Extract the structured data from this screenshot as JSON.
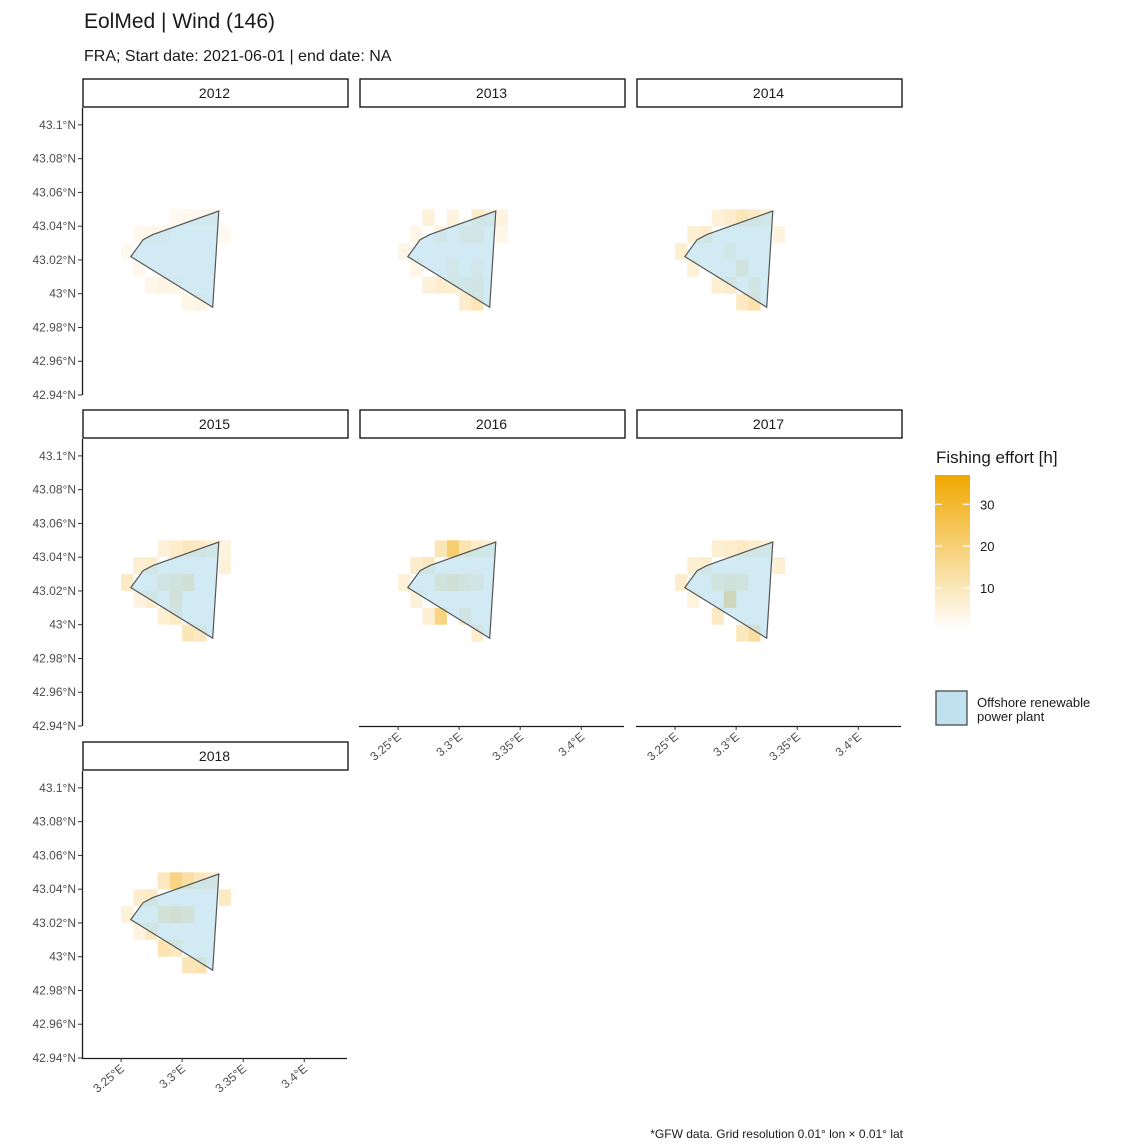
{
  "chart_data": {
    "type": "heatmap",
    "title": "EolMed | Wind (146)",
    "subtitle": "FRA; Start date: 2021-06-01 | end date: NA",
    "caption": "*GFW data. Grid resolution 0.01° lon × 0.01° lat",
    "x_ticks": [
      3.25,
      3.3,
      3.35,
      3.4
    ],
    "x_tick_labels": [
      "3.25°E",
      "3.3°E",
      "3.35°E",
      "3.4°E"
    ],
    "y_ticks": [
      43.1,
      43.08,
      43.06,
      43.04,
      43.02,
      43.0,
      42.98,
      42.96,
      42.94
    ],
    "y_tick_labels": [
      "43.1°N",
      "43.08°N",
      "43.06°N",
      "43.04°N",
      "43.02°N",
      "43°N",
      "42.98°N",
      "42.96°N",
      "42.94°N"
    ],
    "xlim": [
      3.218,
      3.435
    ],
    "ylim": [
      42.94,
      43.11
    ],
    "legend": {
      "fill_title": "Fishing effort [h]",
      "fill_ticks": [
        10,
        20,
        30
      ],
      "fill_range": [
        0,
        37
      ],
      "colors": {
        "low": "#fffaf3",
        "high": "#f0a800"
      },
      "polygon_label": [
        "Offshore renewable",
        "power plant"
      ],
      "polygon_fill": "#bfe2ee",
      "polygon_stroke": "#555555",
      "placement": "right"
    },
    "polygon": [
      [
        3.276,
        43.035
      ],
      [
        3.33,
        43.049
      ],
      [
        3.325,
        42.992
      ],
      [
        3.258,
        43.022
      ],
      [
        3.268,
        43.032
      ]
    ],
    "panels": [
      {
        "label": "2012",
        "cells": [
          {
            "lon": 3.255,
            "lat": 43.025,
            "value": 0.6
          },
          {
            "lon": 3.265,
            "lat": 43.035,
            "value": 1
          },
          {
            "lon": 3.275,
            "lat": 43.035,
            "value": 1.5
          },
          {
            "lon": 3.285,
            "lat": 43.035,
            "value": 1
          },
          {
            "lon": 3.295,
            "lat": 43.045,
            "value": 0.6
          },
          {
            "lon": 3.305,
            "lat": 43.045,
            "value": 1
          },
          {
            "lon": 3.315,
            "lat": 43.045,
            "value": 1.2
          },
          {
            "lon": 3.325,
            "lat": 43.045,
            "value": 1
          },
          {
            "lon": 3.335,
            "lat": 43.035,
            "value": 0.6
          },
          {
            "lon": 3.275,
            "lat": 43.005,
            "value": 1.5
          },
          {
            "lon": 3.285,
            "lat": 43.005,
            "value": 2.5
          },
          {
            "lon": 3.295,
            "lat": 43.005,
            "value": 2
          },
          {
            "lon": 3.305,
            "lat": 42.995,
            "value": 2
          },
          {
            "lon": 3.315,
            "lat": 42.995,
            "value": 2.5
          },
          {
            "lon": 3.265,
            "lat": 43.015,
            "value": 1
          }
        ]
      },
      {
        "label": "2013",
        "cells": [
          {
            "lon": 3.255,
            "lat": 43.025,
            "value": 1.5
          },
          {
            "lon": 3.265,
            "lat": 43.035,
            "value": 2
          },
          {
            "lon": 3.275,
            "lat": 43.045,
            "value": 4
          },
          {
            "lon": 3.285,
            "lat": 43.035,
            "value": 4
          },
          {
            "lon": 3.295,
            "lat": 43.045,
            "value": 3
          },
          {
            "lon": 3.305,
            "lat": 43.035,
            "value": 5
          },
          {
            "lon": 3.315,
            "lat": 43.045,
            "value": 6
          },
          {
            "lon": 3.315,
            "lat": 43.035,
            "value": 5
          },
          {
            "lon": 3.325,
            "lat": 43.045,
            "value": 4
          },
          {
            "lon": 3.335,
            "lat": 43.045,
            "value": 3
          },
          {
            "lon": 3.335,
            "lat": 43.035,
            "value": 2
          },
          {
            "lon": 3.295,
            "lat": 43.015,
            "value": 3
          },
          {
            "lon": 3.305,
            "lat": 43.005,
            "value": 4
          },
          {
            "lon": 3.315,
            "lat": 43.015,
            "value": 3
          },
          {
            "lon": 3.275,
            "lat": 43.005,
            "value": 4
          },
          {
            "lon": 3.285,
            "lat": 43.005,
            "value": 6
          },
          {
            "lon": 3.295,
            "lat": 43.005,
            "value": 5
          },
          {
            "lon": 3.305,
            "lat": 42.995,
            "value": 6
          },
          {
            "lon": 3.315,
            "lat": 42.995,
            "value": 9
          },
          {
            "lon": 3.315,
            "lat": 43.005,
            "value": 6
          },
          {
            "lon": 3.265,
            "lat": 43.015,
            "value": 2
          }
        ]
      },
      {
        "label": "2014",
        "cells": [
          {
            "lon": 3.255,
            "lat": 43.025,
            "value": 5
          },
          {
            "lon": 3.265,
            "lat": 43.035,
            "value": 5
          },
          {
            "lon": 3.275,
            "lat": 43.035,
            "value": 6
          },
          {
            "lon": 3.285,
            "lat": 43.045,
            "value": 4
          },
          {
            "lon": 3.295,
            "lat": 43.045,
            "value": 6
          },
          {
            "lon": 3.305,
            "lat": 43.045,
            "value": 9
          },
          {
            "lon": 3.315,
            "lat": 43.045,
            "value": 7
          },
          {
            "lon": 3.325,
            "lat": 43.045,
            "value": 5
          },
          {
            "lon": 3.335,
            "lat": 43.035,
            "value": 3
          },
          {
            "lon": 3.295,
            "lat": 43.025,
            "value": 4
          },
          {
            "lon": 3.305,
            "lat": 43.015,
            "value": 9
          },
          {
            "lon": 3.315,
            "lat": 43.005,
            "value": 6
          },
          {
            "lon": 3.285,
            "lat": 43.005,
            "value": 5
          },
          {
            "lon": 3.295,
            "lat": 43.005,
            "value": 6
          },
          {
            "lon": 3.305,
            "lat": 42.995,
            "value": 7
          },
          {
            "lon": 3.315,
            "lat": 42.995,
            "value": 11
          },
          {
            "lon": 3.265,
            "lat": 43.015,
            "value": 4
          }
        ]
      },
      {
        "label": "2015",
        "cells": [
          {
            "lon": 3.255,
            "lat": 43.025,
            "value": 7
          },
          {
            "lon": 3.265,
            "lat": 43.035,
            "value": 5
          },
          {
            "lon": 3.275,
            "lat": 43.035,
            "value": 6
          },
          {
            "lon": 3.285,
            "lat": 43.045,
            "value": 4
          },
          {
            "lon": 3.295,
            "lat": 43.045,
            "value": 6
          },
          {
            "lon": 3.305,
            "lat": 43.045,
            "value": 8
          },
          {
            "lon": 3.315,
            "lat": 43.045,
            "value": 7
          },
          {
            "lon": 3.325,
            "lat": 43.045,
            "value": 5
          },
          {
            "lon": 3.335,
            "lat": 43.045,
            "value": 3
          },
          {
            "lon": 3.335,
            "lat": 43.035,
            "value": 4
          },
          {
            "lon": 3.285,
            "lat": 43.025,
            "value": 7
          },
          {
            "lon": 3.295,
            "lat": 43.025,
            "value": 11
          },
          {
            "lon": 3.305,
            "lat": 43.025,
            "value": 14
          },
          {
            "lon": 3.295,
            "lat": 43.015,
            "value": 12
          },
          {
            "lon": 3.275,
            "lat": 43.015,
            "value": 6
          },
          {
            "lon": 3.285,
            "lat": 43.005,
            "value": 5
          },
          {
            "lon": 3.295,
            "lat": 43.005,
            "value": 7
          },
          {
            "lon": 3.305,
            "lat": 42.995,
            "value": 9
          },
          {
            "lon": 3.315,
            "lat": 42.995,
            "value": 8
          },
          {
            "lon": 3.265,
            "lat": 43.015,
            "value": 3
          }
        ]
      },
      {
        "label": "2016",
        "cells": [
          {
            "lon": 3.255,
            "lat": 43.025,
            "value": 4
          },
          {
            "lon": 3.265,
            "lat": 43.035,
            "value": 6
          },
          {
            "lon": 3.275,
            "lat": 43.035,
            "value": 8
          },
          {
            "lon": 3.285,
            "lat": 43.045,
            "value": 9
          },
          {
            "lon": 3.295,
            "lat": 43.045,
            "value": 20
          },
          {
            "lon": 3.305,
            "lat": 43.045,
            "value": 10
          },
          {
            "lon": 3.315,
            "lat": 43.045,
            "value": 6
          },
          {
            "lon": 3.325,
            "lat": 43.045,
            "value": 4
          },
          {
            "lon": 3.285,
            "lat": 43.025,
            "value": 11
          },
          {
            "lon": 3.295,
            "lat": 43.025,
            "value": 14
          },
          {
            "lon": 3.305,
            "lat": 43.025,
            "value": 10
          },
          {
            "lon": 3.315,
            "lat": 43.025,
            "value": 6
          },
          {
            "lon": 3.275,
            "lat": 43.005,
            "value": 5
          },
          {
            "lon": 3.285,
            "lat": 43.005,
            "value": 17
          },
          {
            "lon": 3.305,
            "lat": 43.005,
            "value": 7
          },
          {
            "lon": 3.315,
            "lat": 42.995,
            "value": 6
          },
          {
            "lon": 3.265,
            "lat": 43.015,
            "value": 4
          }
        ]
      },
      {
        "label": "2017",
        "cells": [
          {
            "lon": 3.255,
            "lat": 43.025,
            "value": 6
          },
          {
            "lon": 3.265,
            "lat": 43.035,
            "value": 5
          },
          {
            "lon": 3.275,
            "lat": 43.035,
            "value": 6
          },
          {
            "lon": 3.285,
            "lat": 43.045,
            "value": 5
          },
          {
            "lon": 3.295,
            "lat": 43.045,
            "value": 6
          },
          {
            "lon": 3.305,
            "lat": 43.045,
            "value": 7
          },
          {
            "lon": 3.315,
            "lat": 43.045,
            "value": 6
          },
          {
            "lon": 3.325,
            "lat": 43.045,
            "value": 4
          },
          {
            "lon": 3.335,
            "lat": 43.035,
            "value": 5
          },
          {
            "lon": 3.285,
            "lat": 43.025,
            "value": 9
          },
          {
            "lon": 3.295,
            "lat": 43.015,
            "value": 28
          },
          {
            "lon": 3.295,
            "lat": 43.025,
            "value": 12
          },
          {
            "lon": 3.305,
            "lat": 43.025,
            "value": 9
          },
          {
            "lon": 3.285,
            "lat": 43.005,
            "value": 7
          },
          {
            "lon": 3.305,
            "lat": 42.995,
            "value": 8
          },
          {
            "lon": 3.315,
            "lat": 42.995,
            "value": 13
          },
          {
            "lon": 3.265,
            "lat": 43.015,
            "value": 3
          }
        ]
      },
      {
        "label": "2018",
        "cells": [
          {
            "lon": 3.255,
            "lat": 43.025,
            "value": 4
          },
          {
            "lon": 3.265,
            "lat": 43.035,
            "value": 6
          },
          {
            "lon": 3.275,
            "lat": 43.035,
            "value": 7
          },
          {
            "lon": 3.285,
            "lat": 43.045,
            "value": 8
          },
          {
            "lon": 3.295,
            "lat": 43.045,
            "value": 17
          },
          {
            "lon": 3.305,
            "lat": 43.045,
            "value": 12
          },
          {
            "lon": 3.315,
            "lat": 43.045,
            "value": 8
          },
          {
            "lon": 3.325,
            "lat": 43.045,
            "value": 6
          },
          {
            "lon": 3.335,
            "lat": 43.035,
            "value": 7
          },
          {
            "lon": 3.285,
            "lat": 43.025,
            "value": 13
          },
          {
            "lon": 3.295,
            "lat": 43.025,
            "value": 16
          },
          {
            "lon": 3.305,
            "lat": 43.025,
            "value": 12
          },
          {
            "lon": 3.275,
            "lat": 43.015,
            "value": 8
          },
          {
            "lon": 3.285,
            "lat": 43.005,
            "value": 10
          },
          {
            "lon": 3.295,
            "lat": 43.005,
            "value": 8
          },
          {
            "lon": 3.305,
            "lat": 42.995,
            "value": 9
          },
          {
            "lon": 3.315,
            "lat": 42.995,
            "value": 10
          },
          {
            "lon": 3.265,
            "lat": 43.015,
            "value": 3
          }
        ]
      }
    ]
  }
}
